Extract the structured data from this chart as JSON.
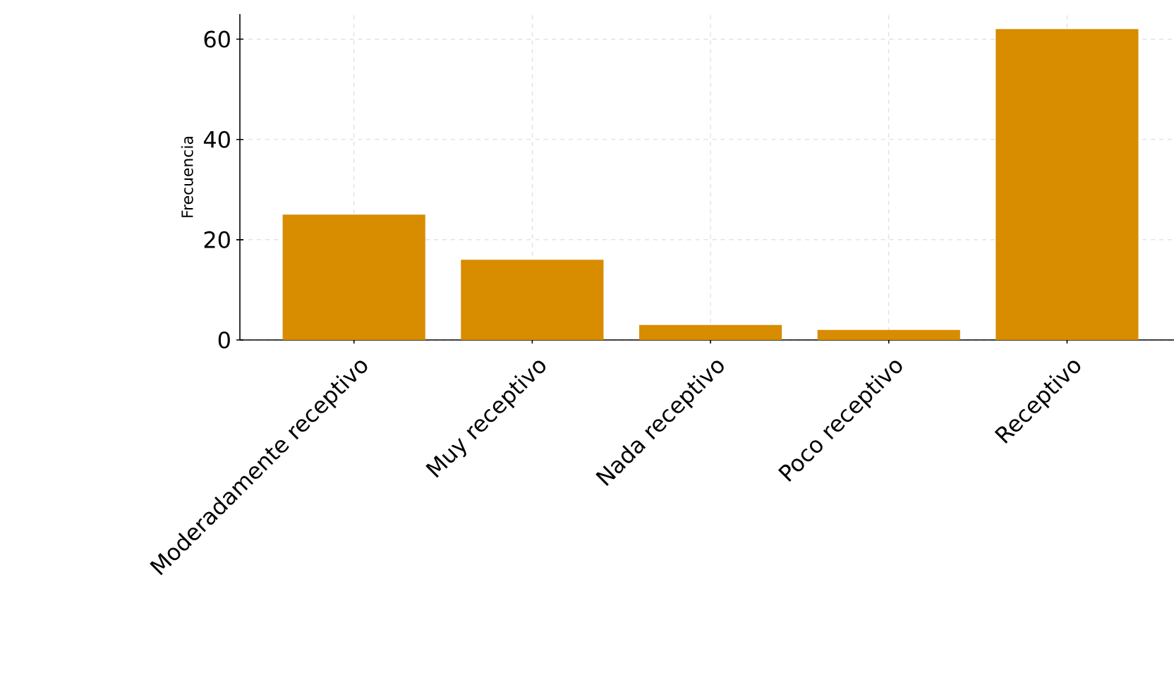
{
  "chart_data": {
    "type": "bar",
    "ylabel": "Frecuencia",
    "categories": [
      "Moderadamente receptivo",
      "Muy receptivo",
      "Nada receptivo",
      "Poco receptivo",
      "Receptivo"
    ],
    "values": [
      25,
      16,
      3,
      2,
      62
    ],
    "color": "#d88c00",
    "ylim": [
      0,
      65
    ],
    "yticks": [
      0,
      20,
      40,
      60
    ],
    "grid": true
  }
}
